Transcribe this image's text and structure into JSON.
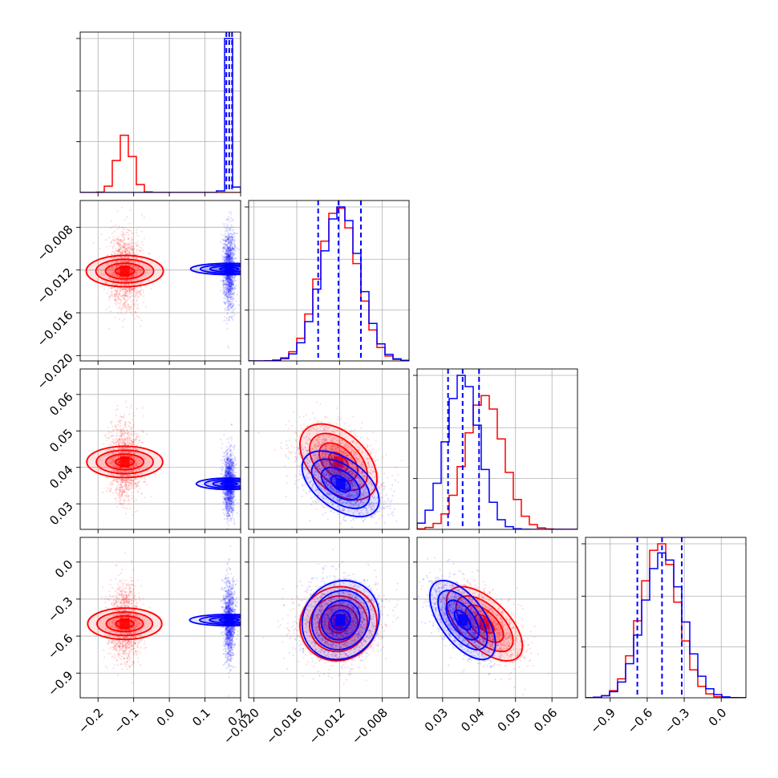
{
  "chart_data": {
    "type": "corner",
    "grid": true,
    "colors": {
      "series_a": "#ff0000",
      "series_b": "#0000ff"
    },
    "series": [
      {
        "color": "#ff0000",
        "mean": [
          -0.125,
          -0.0121,
          0.0415,
          -0.5
        ],
        "std": [
          0.022,
          0.0018,
          0.0052,
          0.15
        ],
        "corr": {
          "0-1": 0.0,
          "0-2": 0.0,
          "0-3": 0.0,
          "1-2": -0.45,
          "1-3": 0.05,
          "2-3": -0.6
        }
      },
      {
        "color": "#0000ff",
        "mean": [
          0.168,
          -0.0119,
          0.0355,
          -0.47
        ],
        "std": [
          0.008,
          0.0018,
          0.0045,
          0.16
        ],
        "corr": {
          "0-1": 0.0,
          "0-2": 0.0,
          "0-3": 0.0,
          "1-2": -0.5,
          "1-3": 0.1,
          "2-3": -0.6
        }
      }
    ],
    "quantile_lines": [
      [
        0.16,
        0.168,
        0.176
      ],
      [
        -0.014,
        -0.0121,
        -0.01
      ],
      [
        0.0315,
        0.0355,
        0.04
      ],
      [
        -0.68,
        -0.48,
        -0.32
      ]
    ],
    "variables": [
      {
        "range": [
          -0.25,
          0.2
        ],
        "ticks": [
          -0.2,
          -0.1,
          0.0,
          0.1,
          0.2
        ],
        "tick_labels": [
          "−0.2",
          "−0.1",
          "0.0",
          "0.1",
          "0.2"
        ]
      },
      {
        "range": [
          -0.0205,
          -0.0055
        ],
        "ticks": [
          -0.02,
          -0.016,
          -0.012,
          -0.008
        ],
        "tick_labels": [
          "−0.020",
          "−0.016",
          "−0.012",
          "−0.008"
        ]
      },
      {
        "range": [
          0.023,
          0.067
        ],
        "ticks": [
          0.03,
          0.04,
          0.05,
          0.06
        ],
        "tick_labels": [
          "0.03",
          "0.04",
          "0.05",
          "0.06"
        ]
      },
      {
        "range": [
          -1.1,
          0.2
        ],
        "ticks": [
          -0.9,
          -0.6,
          -0.3,
          0.0
        ],
        "tick_labels": [
          "−0.9",
          "−0.6",
          "−0.3",
          "0.0"
        ]
      }
    ]
  }
}
